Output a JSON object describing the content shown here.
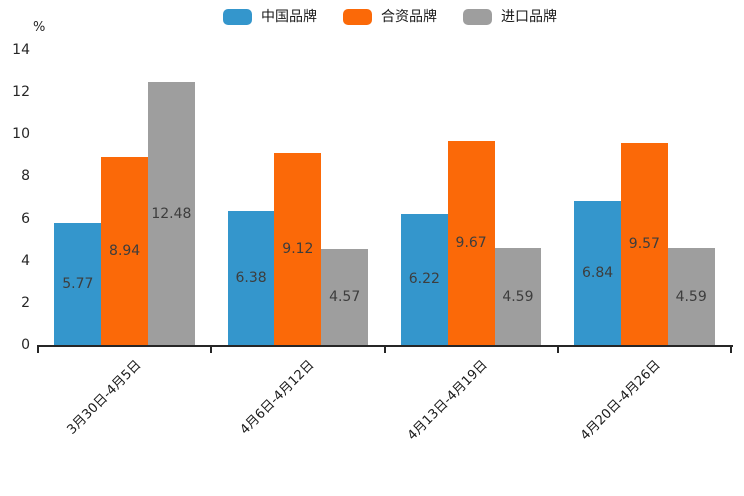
{
  "chart_data": {
    "type": "bar",
    "title": "",
    "xlabel": "",
    "ylabel": "%",
    "categories": [
      "3月30日-4月5日",
      "4月6日-4月12日",
      "4月13日-4月19日",
      "4月20日-4月26日"
    ],
    "series": [
      {
        "name": "中国品牌",
        "slug": "china-brand",
        "color": "#3496cc",
        "values": [
          5.77,
          6.38,
          6.22,
          6.84
        ]
      },
      {
        "name": "合资品牌",
        "slug": "joint-venture-brand",
        "color": "#fb6908",
        "values": [
          8.94,
          9.12,
          9.67,
          9.57
        ]
      },
      {
        "name": "进口品牌",
        "slug": "import-brand",
        "color": "#9e9e9e",
        "values": [
          12.48,
          4.57,
          4.59,
          4.59
        ]
      }
    ],
    "yticks": [
      "0",
      "2",
      "4",
      "6",
      "8",
      "10",
      "12",
      "14"
    ],
    "ylim": [
      0,
      14
    ],
    "grid": false,
    "legend_position": "top",
    "value_labels": "inside-center",
    "value_label_color": "#3d3d3d",
    "axis_color": "#262626",
    "tick_label_color": "#262626",
    "background_color": "#ffffff"
  }
}
